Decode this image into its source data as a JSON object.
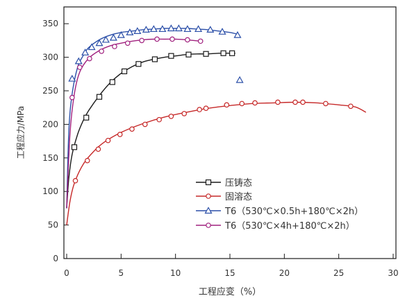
{
  "chart_data": {
    "type": "line",
    "xlabel": "工程应变（%）",
    "ylabel": "工程应力/MPa",
    "xlim": [
      0,
      30
    ],
    "ylim": [
      0,
      375
    ],
    "x_ticks": [
      0,
      5,
      10,
      15,
      20,
      25,
      30
    ],
    "y_ticks": [
      0,
      50,
      100,
      150,
      200,
      250,
      300,
      350
    ],
    "grid": false,
    "legend_position": "bottom-center",
    "series": [
      {
        "name": "压铸态",
        "color": "#1a1a1a",
        "marker": "square",
        "curve": [
          [
            0,
            75
          ],
          [
            0.2,
            120
          ],
          [
            0.5,
            155
          ],
          [
            1,
            185
          ],
          [
            1.5,
            205
          ],
          [
            2,
            220
          ],
          [
            3,
            243
          ],
          [
            4,
            262
          ],
          [
            5,
            276
          ],
          [
            6,
            286
          ],
          [
            7,
            293
          ],
          [
            8,
            297
          ],
          [
            9,
            300
          ],
          [
            10,
            302
          ],
          [
            11,
            304
          ],
          [
            12,
            305
          ],
          [
            13,
            305
          ],
          [
            14,
            306
          ],
          [
            15.5,
            306
          ]
        ],
        "markers": [
          [
            0.7,
            166
          ],
          [
            1.8,
            210
          ],
          [
            3,
            241
          ],
          [
            4.2,
            263
          ],
          [
            5.3,
            279
          ],
          [
            6.6,
            290
          ],
          [
            8.1,
            297
          ],
          [
            9.6,
            302
          ],
          [
            11.2,
            304
          ],
          [
            12.8,
            305
          ],
          [
            14.4,
            306
          ],
          [
            15.2,
            306
          ]
        ]
      },
      {
        "name": "固溶态",
        "color": "#c62828",
        "marker": "circle",
        "curve": [
          [
            0,
            50
          ],
          [
            0.3,
            85
          ],
          [
            0.7,
            112
          ],
          [
            1.5,
            140
          ],
          [
            2.5,
            160
          ],
          [
            3.5,
            174
          ],
          [
            5,
            188
          ],
          [
            7,
            201
          ],
          [
            9,
            211
          ],
          [
            11,
            218
          ],
          [
            13,
            224
          ],
          [
            15,
            228
          ],
          [
            17,
            231
          ],
          [
            19,
            232
          ],
          [
            21,
            233
          ],
          [
            23,
            232
          ],
          [
            25,
            229
          ],
          [
            26.5,
            226
          ],
          [
            27.5,
            218
          ]
        ],
        "markers": [
          [
            0.8,
            116
          ],
          [
            1.9,
            146
          ],
          [
            2.9,
            163
          ],
          [
            3.8,
            176
          ],
          [
            4.9,
            185
          ],
          [
            6,
            193
          ],
          [
            7.2,
            200
          ],
          [
            8.5,
            207
          ],
          [
            9.6,
            212
          ],
          [
            10.8,
            216
          ],
          [
            12.2,
            222
          ],
          [
            12.8,
            224
          ],
          [
            14.7,
            229
          ],
          [
            16.1,
            231
          ],
          [
            17.3,
            232
          ],
          [
            19.4,
            233
          ],
          [
            21,
            233
          ],
          [
            21.7,
            233
          ],
          [
            23.8,
            231
          ],
          [
            26.1,
            227
          ]
        ]
      },
      {
        "name": "T6（530℃×0.5h+180℃×2h）",
        "color": "#2b4fa8",
        "marker": "triangle",
        "curve": [
          [
            0,
            75
          ],
          [
            0.2,
            190
          ],
          [
            0.5,
            245
          ],
          [
            1,
            285
          ],
          [
            1.5,
            302
          ],
          [
            2,
            314
          ],
          [
            3,
            326
          ],
          [
            4,
            333
          ],
          [
            5,
            337
          ],
          [
            6,
            339
          ],
          [
            7,
            341
          ],
          [
            8,
            342
          ],
          [
            9,
            343
          ],
          [
            10,
            343
          ],
          [
            11,
            343
          ],
          [
            12,
            342
          ],
          [
            13,
            341
          ],
          [
            14,
            339
          ],
          [
            15,
            337
          ],
          [
            15.8,
            334
          ]
        ],
        "markers": [
          [
            0.5,
            268
          ],
          [
            1.1,
            294
          ],
          [
            1.7,
            307
          ],
          [
            2.3,
            315
          ],
          [
            3,
            321
          ],
          [
            3.6,
            326
          ],
          [
            4.3,
            329
          ],
          [
            5,
            333
          ],
          [
            5.8,
            337
          ],
          [
            6.5,
            339
          ],
          [
            7.3,
            341
          ],
          [
            8,
            342
          ],
          [
            8.8,
            342
          ],
          [
            9.6,
            343
          ],
          [
            10.3,
            343
          ],
          [
            11.1,
            342
          ],
          [
            12.1,
            342
          ],
          [
            13.2,
            341
          ],
          [
            14.3,
            338
          ],
          [
            15.7,
            333
          ],
          [
            15.9,
            266
          ]
        ]
      },
      {
        "name": "T6（530℃×4h+180℃×2h）",
        "color": "#a0207e",
        "marker": "circle",
        "curve": [
          [
            0,
            75
          ],
          [
            0.3,
            185
          ],
          [
            0.7,
            245
          ],
          [
            1.2,
            278
          ],
          [
            2,
            298
          ],
          [
            3,
            310
          ],
          [
            4,
            317
          ],
          [
            5,
            321
          ],
          [
            6,
            324
          ],
          [
            7,
            326
          ],
          [
            8,
            327
          ],
          [
            9,
            327
          ],
          [
            10,
            327
          ],
          [
            11,
            326
          ],
          [
            12.3,
            324
          ]
        ],
        "markers": [
          [
            0.5,
            240
          ],
          [
            1.2,
            285
          ],
          [
            2.1,
            298
          ],
          [
            3.2,
            309
          ],
          [
            4.4,
            316
          ],
          [
            5.6,
            321
          ],
          [
            6.9,
            325
          ],
          [
            8.3,
            327
          ],
          [
            9.7,
            327
          ],
          [
            11.1,
            326
          ],
          [
            12.3,
            324
          ]
        ]
      }
    ]
  }
}
